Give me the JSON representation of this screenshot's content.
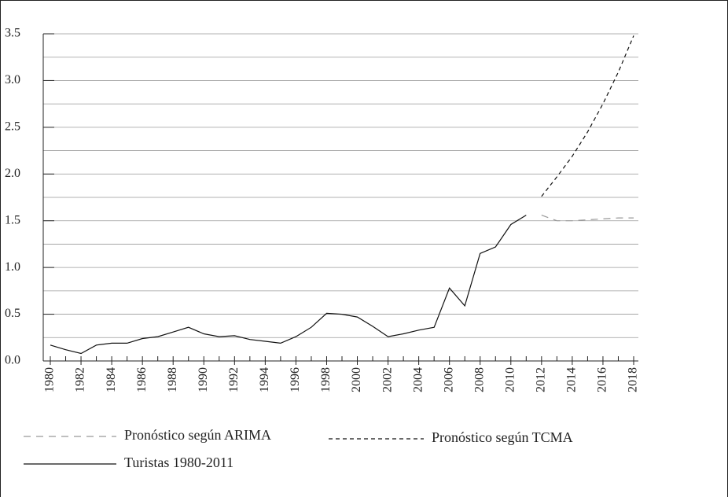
{
  "chart_data": {
    "type": "line",
    "x": [
      1980,
      1981,
      1982,
      1983,
      1984,
      1985,
      1986,
      1987,
      1988,
      1989,
      1990,
      1991,
      1992,
      1993,
      1994,
      1995,
      1996,
      1997,
      1998,
      1999,
      2000,
      2001,
      2002,
      2003,
      2004,
      2005,
      2006,
      2007,
      2008,
      2009,
      2010,
      2011,
      2012,
      2013,
      2014,
      2015,
      2016,
      2017,
      2018
    ],
    "xlim": [
      1980,
      2018
    ],
    "xticks": [
      1980,
      1982,
      1984,
      1986,
      1988,
      1990,
      1992,
      1994,
      1996,
      1998,
      2000,
      2002,
      2004,
      2006,
      2008,
      2010,
      2012,
      2014,
      2016,
      2018
    ],
    "ylim": [
      0,
      3.5
    ],
    "yticks": [
      {
        "value": 0,
        "label": "0.0"
      },
      {
        "value": 0.5,
        "label": "0.5"
      },
      {
        "value": 1,
        "label": "1.0"
      },
      {
        "value": 1.5,
        "label": "1.5"
      },
      {
        "value": 2,
        "label": "2.0"
      },
      {
        "value": 2.5,
        "label": "2.5"
      },
      {
        "value": 3,
        "label": "3.0"
      },
      {
        "value": 3.5,
        "label": "3.5"
      }
    ],
    "minor_yticks": [
      0.25,
      0.75,
      1.25,
      1.75,
      2.25,
      2.75,
      3.25
    ],
    "grid": true,
    "series": [
      {
        "name": "Pronóstico según ARIMA",
        "color": "#999999",
        "dash": "9 7",
        "values": [
          null,
          null,
          null,
          null,
          null,
          null,
          null,
          null,
          null,
          null,
          null,
          null,
          null,
          null,
          null,
          null,
          null,
          null,
          null,
          null,
          null,
          null,
          null,
          null,
          null,
          null,
          null,
          null,
          null,
          null,
          null,
          null,
          1.56,
          1.5,
          1.5,
          1.51,
          1.52,
          1.53,
          1.53
        ]
      },
      {
        "name": "Pronóstico según TCMA",
        "color": "#111111",
        "dash": "5 4",
        "values": [
          null,
          null,
          null,
          null,
          null,
          null,
          null,
          null,
          null,
          null,
          null,
          null,
          null,
          null,
          null,
          null,
          null,
          null,
          null,
          null,
          null,
          null,
          null,
          null,
          null,
          null,
          null,
          null,
          null,
          null,
          null,
          null,
          1.76,
          1.97,
          2.19,
          2.45,
          2.75,
          3.09,
          3.48
        ]
      },
      {
        "name": "Turistas 1980-2011",
        "color": "#111111",
        "dash": "none",
        "values": [
          0.17,
          0.12,
          0.08,
          0.17,
          0.19,
          0.19,
          0.24,
          0.26,
          0.31,
          0.36,
          0.29,
          0.26,
          0.27,
          0.23,
          0.21,
          0.19,
          0.26,
          0.36,
          0.51,
          0.5,
          0.47,
          0.37,
          0.26,
          0.29,
          0.33,
          0.36,
          0.78,
          0.59,
          1.15,
          1.22,
          1.46,
          1.56,
          null,
          null,
          null,
          null,
          null,
          null,
          null
        ]
      }
    ]
  }
}
